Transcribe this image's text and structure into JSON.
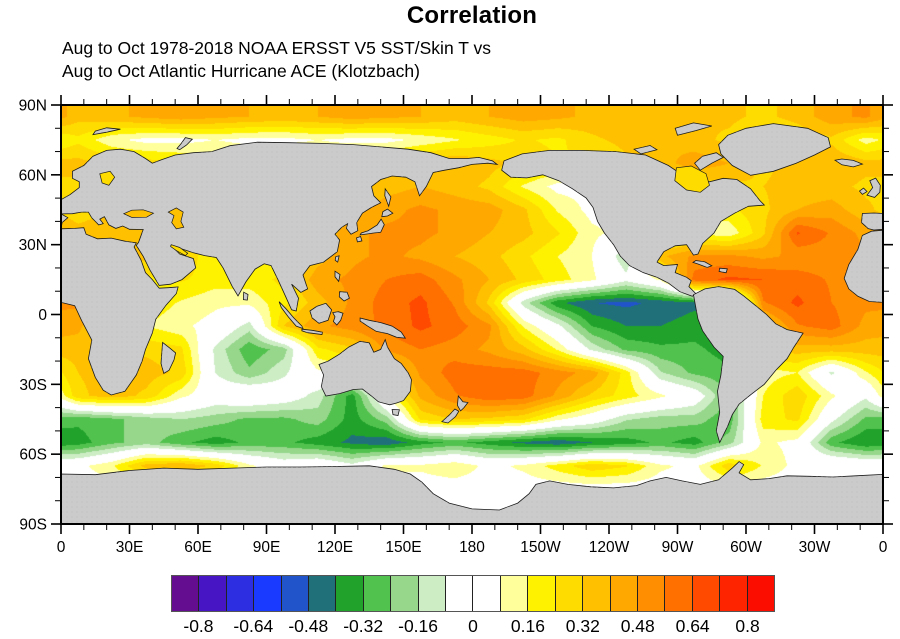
{
  "title": "Correlation",
  "subtitle_line1": "Aug to Oct 1978-2018 NOAA ERSST V5 SST/Skin T vs",
  "subtitle_line2": "Aug to Oct Atlantic Hurricane ACE (Klotzbach)",
  "chart_data": {
    "type": "heatmap",
    "title": "Correlation",
    "subtitle": [
      "Aug to Oct 1978-2018 NOAA ERSST V5 SST/Skin T vs",
      "Aug to Oct Atlantic Hurricane ACE (Klotzbach)"
    ],
    "projection": "global equirectangular, longitude 0E eastward to 0 (Pacific-centered 180), latitude 90N to 90S",
    "x_axis": {
      "tick_degrees": [
        0,
        30,
        60,
        90,
        120,
        150,
        180,
        210,
        240,
        270,
        300,
        330,
        360
      ],
      "tick_labels": [
        "0",
        "30E",
        "60E",
        "90E",
        "120E",
        "150E",
        "180",
        "150W",
        "120W",
        "90W",
        "60W",
        "30W",
        "0"
      ],
      "minor_step_deg": 10
    },
    "y_axis": {
      "tick_degrees": [
        90,
        60,
        30,
        0,
        -30,
        -60,
        -90
      ],
      "tick_labels": [
        "90N",
        "60N",
        "30N",
        "0",
        "30S",
        "60S",
        "90S"
      ],
      "minor_step_deg": 10
    },
    "colorbar": {
      "cell_step": 0.08,
      "range": [
        -0.8,
        0.8
      ],
      "tick_labels": [
        "-0.8",
        "-0.64",
        "-0.48",
        "-0.32",
        "-0.16",
        "0",
        "0.16",
        "0.32",
        "0.48",
        "0.64",
        "0.8"
      ],
      "colors": [
        "#650D90",
        "#4815C4",
        "#2D2DE1",
        "#1A3AFF",
        "#2154CB",
        "#20707A",
        "#21A32B",
        "#52C24E",
        "#96D78C",
        "#CDEDC5",
        "#FFFFFF",
        "#FFFFFF",
        "#FFFF9C",
        "#FFF200",
        "#FFDC00",
        "#FFC000",
        "#FFA800",
        "#FF8F00",
        "#FF7000",
        "#FF4A00",
        "#FF2400",
        "#FB0D00"
      ]
    },
    "land_color": "#cbcbcb",
    "coastline_color": "#1a1a1a",
    "grid": {
      "lon_cell_deg": 15,
      "lat_cell_deg": 10,
      "lon_centers_start": 7.5,
      "lat_centers_start": 85,
      "note": "correlation values estimated from figure, rows 85N to 85S",
      "values": [
        [
          0.35,
          0.38,
          0.42,
          0.45,
          0.42,
          0.4,
          0.38,
          0.4,
          0.44,
          0.42,
          0.4,
          0.36,
          0.4,
          0.44,
          0.42,
          0.38,
          0.4,
          0.36,
          0.32,
          0.34,
          0.3,
          0.35,
          0.45,
          0.5
        ],
        [
          0.22,
          0.1,
          0.05,
          0.05,
          0.08,
          0.05,
          0.05,
          0.08,
          0.05,
          0.05,
          0.1,
          0.15,
          0.2,
          0.25,
          0.22,
          0.3,
          0.35,
          0.4,
          0.35,
          0.3,
          0.22,
          0.25,
          0.3,
          0.12
        ],
        [
          0.35,
          0.3,
          0.28,
          0.25,
          0.2,
          0.2,
          0.24,
          0.2,
          0.25,
          0.3,
          0.36,
          0.4,
          0.35,
          0.3,
          0.25,
          0.2,
          0.3,
          0.36,
          0.45,
          0.4,
          0.3,
          0.35,
          0.4,
          0.35
        ],
        [
          0.3,
          0.3,
          0.22,
          0.2,
          0.2,
          0.2,
          0.22,
          0.25,
          0.3,
          0.36,
          0.4,
          0.36,
          0.3,
          0.15,
          0.05,
          0.05,
          0.1,
          0.2,
          0.26,
          0.3,
          0.32,
          0.35,
          0.35,
          0.3
        ],
        [
          0.26,
          0.32,
          0.36,
          0.38,
          0.2,
          0.2,
          0.22,
          0.28,
          0.36,
          0.45,
          0.5,
          0.46,
          0.44,
          0.34,
          0.15,
          0.05,
          0.05,
          0.1,
          0.16,
          0.22,
          0.3,
          0.4,
          0.44,
          0.34
        ],
        [
          0.36,
          0.4,
          0.32,
          0.26,
          0.2,
          0.2,
          0.22,
          0.32,
          0.46,
          0.5,
          0.5,
          0.46,
          0.4,
          0.35,
          0.25,
          0.1,
          0.05,
          0.1,
          0.15,
          0.1,
          0.3,
          0.65,
          0.55,
          0.45
        ],
        [
          0.3,
          0.3,
          0.35,
          0.32,
          0.16,
          0.15,
          0.2,
          0.36,
          0.46,
          0.5,
          0.46,
          0.4,
          0.35,
          0.26,
          0.16,
          0.08,
          -0.15,
          0.38,
          0.5,
          0.5,
          0.46,
          0.5,
          0.52,
          0.5
        ],
        [
          0.3,
          0.26,
          0.22,
          0.25,
          0.2,
          0.2,
          0.26,
          0.45,
          0.5,
          0.56,
          0.6,
          0.5,
          0.4,
          0.3,
          0.2,
          0.1,
          -0.05,
          0.1,
          0.6,
          0.66,
          0.64,
          0.6,
          0.55,
          0.5
        ],
        [
          0.5,
          0.36,
          0.22,
          0.15,
          0.1,
          0.1,
          0.22,
          0.36,
          0.5,
          0.6,
          0.66,
          0.55,
          0.3,
          -0.12,
          -0.38,
          -0.48,
          -0.5,
          -0.46,
          -0.42,
          -0.5,
          0.55,
          0.66,
          0.56,
          0.5
        ],
        [
          0.42,
          0.26,
          0.16,
          0.1,
          0.04,
          -0.12,
          0.32,
          0.46,
          0.52,
          0.58,
          0.66,
          0.6,
          0.5,
          0.15,
          -0.05,
          -0.32,
          -0.4,
          -0.4,
          -0.36,
          -0.42,
          0.32,
          0.55,
          0.6,
          0.45
        ],
        [
          0.36,
          0.3,
          0.3,
          0.26,
          -0.1,
          -0.3,
          -0.2,
          0.22,
          0.3,
          0.5,
          0.56,
          0.52,
          0.46,
          0.35,
          0.15,
          -0.1,
          -0.26,
          -0.3,
          -0.3,
          -0.36,
          0.3,
          0.36,
          0.36,
          0.36
        ],
        [
          0.32,
          0.36,
          0.36,
          0.3,
          -0.08,
          -0.22,
          -0.1,
          0.06,
          0.12,
          0.22,
          0.5,
          0.6,
          0.6,
          0.6,
          0.52,
          0.45,
          0.2,
          -0.15,
          -0.26,
          -0.3,
          0.12,
          0.16,
          -0.1,
          0.15
        ],
        [
          0.3,
          0.36,
          0.3,
          0.1,
          0.0,
          0.05,
          0.0,
          -0.12,
          -0.36,
          0.1,
          0.42,
          0.55,
          0.62,
          0.6,
          0.46,
          0.3,
          0.2,
          0.1,
          0.0,
          -0.26,
          0.16,
          0.3,
          0.1,
          -0.06
        ],
        [
          -0.3,
          -0.26,
          -0.2,
          -0.16,
          -0.2,
          -0.26,
          -0.26,
          -0.2,
          -0.36,
          -0.2,
          0.26,
          0.32,
          0.3,
          0.26,
          0.1,
          0.0,
          -0.15,
          -0.2,
          -0.2,
          -0.3,
          0.2,
          0.26,
          -0.05,
          -0.26
        ],
        [
          -0.36,
          -0.26,
          -0.2,
          -0.3,
          -0.36,
          -0.3,
          -0.3,
          -0.36,
          -0.42,
          -0.46,
          -0.36,
          -0.3,
          -0.36,
          -0.42,
          -0.46,
          -0.4,
          -0.36,
          -0.3,
          -0.36,
          -0.2,
          0.1,
          0.05,
          -0.3,
          -0.4
        ],
        [
          0.05,
          0.15,
          0.36,
          0.4,
          0.3,
          0.1,
          0.0,
          0.05,
          -0.05,
          0.1,
          0.1,
          0.15,
          0.05,
          0.1,
          0.2,
          0.3,
          0.25,
          0.1,
          0.05,
          0.3,
          0.15,
          0.05,
          0.08,
          0.05
        ],
        [
          0.02,
          0.02,
          0.02,
          0.02,
          0.02,
          0.02,
          0.02,
          0.02,
          0.02,
          0.02,
          0.02,
          0.02,
          0.02,
          0.02,
          0.02,
          0.02,
          0.02,
          0.02,
          0.02,
          0.02,
          0.02,
          0.02,
          0.02,
          0.02
        ],
        [
          0.0,
          0.0,
          0.0,
          0.0,
          0.0,
          0.0,
          0.0,
          0.0,
          0.0,
          0.0,
          0.0,
          0.0,
          0.0,
          0.0,
          0.0,
          0.0,
          0.0,
          0.0,
          0.0,
          0.0,
          0.0,
          0.0,
          0.0,
          0.0
        ]
      ]
    }
  }
}
